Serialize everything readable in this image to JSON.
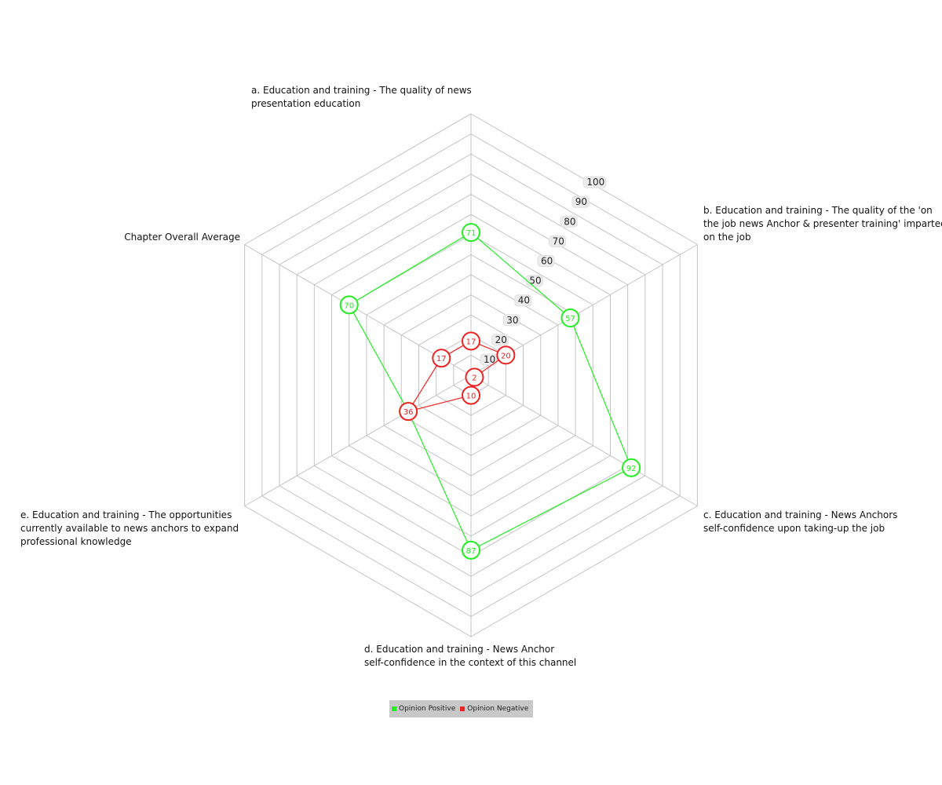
{
  "chart_data": {
    "type": "radar",
    "axes": [
      "a. Education and training - The quality of news presentation  education",
      "b. Education and training - The quality of the 'on the job news Anchor & presenter training' imparted on the job",
      "c. Education and training - News Anchors self-confidence upon taking-up the job",
      "d. Education and training - News Anchor self-confidence in the context of this channel",
      "e. Education and training - The opportunities currently available to news anchors to expand professional knowledge",
      "Chapter Overall Average"
    ],
    "axis_label_lines": [
      [
        "a. Education and training - The quality of news",
        "presentation  education"
      ],
      [
        "b. Education and training - The quality of the 'on",
        "the job news Anchor & presenter training' imparted",
        "on the job"
      ],
      [
        "c. Education and training - News Anchors",
        "self-confidence upon taking-up the job"
      ],
      [
        "d. Education and training - News Anchor",
        "self-confidence in the context of this channel"
      ],
      [
        "e. Education and training - The opportunities",
        "currently available to news anchors to expand",
        "professional knowledge"
      ],
      [
        "Chapter Overall Average"
      ]
    ],
    "ticks": [
      10,
      20,
      30,
      40,
      50,
      60,
      70,
      80,
      90,
      100
    ],
    "range": [
      0,
      130
    ],
    "series": [
      {
        "name": "Opinion Positive",
        "color": "#22ee22",
        "values": [
          71,
          57,
          92,
          87,
          36,
          70
        ]
      },
      {
        "name": "Opinion Negative",
        "color": "#ee2222",
        "values": [
          17,
          20,
          2,
          10,
          36,
          17
        ]
      }
    ],
    "grid": true,
    "legend": "bottom-center"
  },
  "legend": {
    "items": [
      {
        "label": "Opinion Positive",
        "color": "#22ee22"
      },
      {
        "label": "Opinion Negative",
        "color": "#ee2222"
      }
    ]
  }
}
